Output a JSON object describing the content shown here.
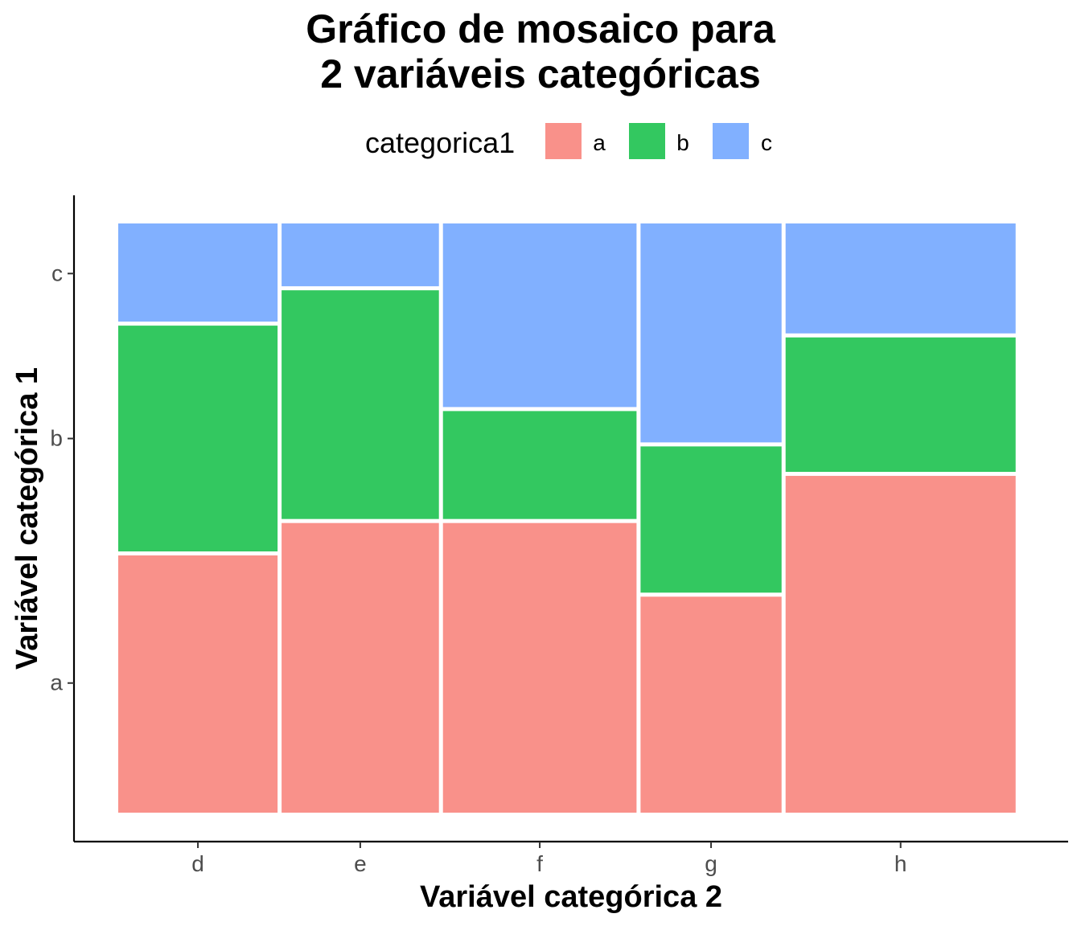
{
  "title": {
    "line1": "Gráfico de mosaico para",
    "line2": "2 variáveis categóricas"
  },
  "legend": {
    "title": "categorica1",
    "items": [
      {
        "label": "a",
        "color": "#F8766D"
      },
      {
        "label": "b",
        "color": "#00BA38"
      },
      {
        "label": "c",
        "color": "#619CFF"
      }
    ]
  },
  "chart_data": {
    "type": "mosaic",
    "xlabel": "Variável categórica 2",
    "ylabel": "Variável categórica 1",
    "x_categories": [
      "d",
      "e",
      "f",
      "g",
      "h"
    ],
    "x_widths": [
      0.178,
      0.178,
      0.218,
      0.16,
      0.256
    ],
    "y_categories": [
      "a",
      "b",
      "c"
    ],
    "y_tick_labels": [
      "a",
      "b",
      "c"
    ],
    "proportions": [
      {
        "x": "d",
        "a": 0.44,
        "b": 0.39,
        "c": 0.17
      },
      {
        "x": "e",
        "a": 0.495,
        "b": 0.395,
        "c": 0.11
      },
      {
        "x": "f",
        "a": 0.495,
        "b": 0.19,
        "c": 0.315
      },
      {
        "x": "g",
        "a": 0.37,
        "b": 0.255,
        "c": 0.375
      },
      {
        "x": "h",
        "a": 0.575,
        "b": 0.235,
        "c": 0.19
      }
    ],
    "colors": {
      "a": "#F8766D",
      "b": "#00BA38",
      "c": "#619CFF"
    },
    "fill_alpha": 0.8,
    "grid": false
  }
}
